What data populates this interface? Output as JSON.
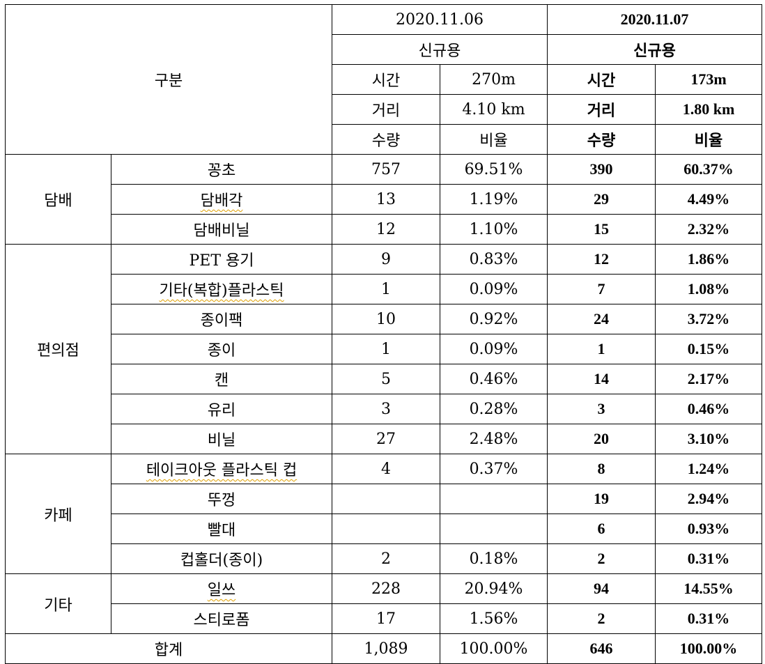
{
  "header": {
    "category": "구분",
    "date1": "2020.11.06",
    "date2": "2020.11.07",
    "type1": "신규용",
    "type2": "신규용",
    "time_label1": "시간",
    "time_value1": "270m",
    "time_label2": "시간",
    "time_value2": "173m",
    "dist_label1": "거리",
    "dist_value1": "4.10 km",
    "dist_label2": "거리",
    "dist_value2": "1.80 km",
    "qty_label1": "수량",
    "ratio_label1": "비율",
    "qty_label2": "수량",
    "ratio_label2": "비율"
  },
  "groups": [
    {
      "name": "담배",
      "rows": [
        {
          "item": "꽁초",
          "q1": "757",
          "r1": "69.51%",
          "q2": "390",
          "r2": "60.37%"
        },
        {
          "item": "담배각",
          "q1": "13",
          "r1": "1.19%",
          "q2": "29",
          "r2": "4.49%"
        },
        {
          "item": "담배비닐",
          "q1": "12",
          "r1": "1.10%",
          "q2": "15",
          "r2": "2.32%"
        }
      ]
    },
    {
      "name": "편의점",
      "rows": [
        {
          "item": "PET 용기",
          "q1": "9",
          "r1": "0.83%",
          "q2": "12",
          "r2": "1.86%"
        },
        {
          "item": "기타(복합)플라스틱",
          "q1": "1",
          "r1": "0.09%",
          "q2": "7",
          "r2": "1.08%"
        },
        {
          "item": "종이팩",
          "q1": "10",
          "r1": "0.92%",
          "q2": "24",
          "r2": "3.72%"
        },
        {
          "item": "종이",
          "q1": "1",
          "r1": "0.09%",
          "q2": "1",
          "r2": "0.15%"
        },
        {
          "item": "캔",
          "q1": "5",
          "r1": "0.46%",
          "q2": "14",
          "r2": "2.17%"
        },
        {
          "item": "유리",
          "q1": "3",
          "r1": "0.28%",
          "q2": "3",
          "r2": "0.46%"
        },
        {
          "item": "비닐",
          "q1": "27",
          "r1": "2.48%",
          "q2": "20",
          "r2": "3.10%"
        }
      ]
    },
    {
      "name": "카페",
      "rows": [
        {
          "item": "테이크아웃 플라스틱 컵",
          "q1": "4",
          "r1": "0.37%",
          "q2": "8",
          "r2": "1.24%"
        },
        {
          "item": "뚜껑",
          "q1": "",
          "r1": "",
          "q2": "19",
          "r2": "2.94%"
        },
        {
          "item": "빨대",
          "q1": "",
          "r1": "",
          "q2": "6",
          "r2": "0.93%"
        },
        {
          "item": "컵홀더(종이)",
          "q1": "2",
          "r1": "0.18%",
          "q2": "2",
          "r2": "0.31%"
        }
      ]
    },
    {
      "name": "기타",
      "rows": [
        {
          "item": "일쓰",
          "q1": "228",
          "r1": "20.94%",
          "q2": "94",
          "r2": "14.55%"
        },
        {
          "item": "스티로폼",
          "q1": "17",
          "r1": "1.56%",
          "q2": "2",
          "r2": "0.31%"
        }
      ]
    }
  ],
  "total": {
    "label": "합계",
    "q1": "1,089",
    "r1": "100.00%",
    "q2": "646",
    "r2": "100.00%"
  }
}
